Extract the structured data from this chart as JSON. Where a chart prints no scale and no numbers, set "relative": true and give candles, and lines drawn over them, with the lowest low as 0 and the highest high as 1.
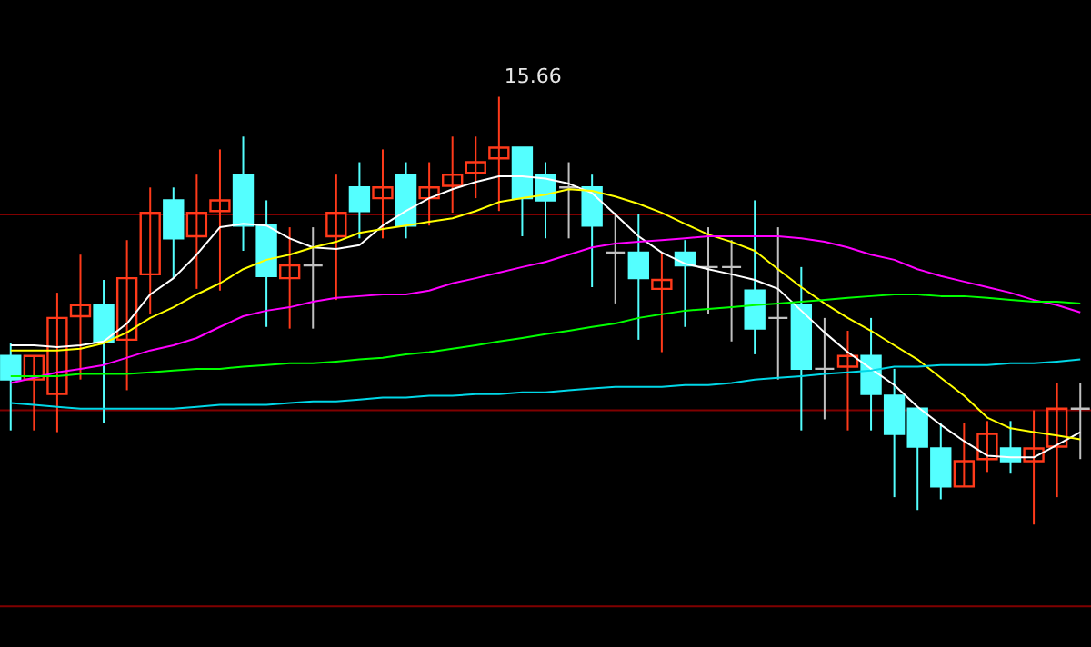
{
  "chart_data": {
    "type": "candlestick",
    "relative": true,
    "categories": [
      null,
      null,
      null,
      null,
      null,
      null,
      null,
      null,
      null,
      null,
      null,
      null,
      null,
      null,
      null,
      null,
      null,
      null,
      null,
      null,
      null,
      null,
      null,
      null,
      null,
      null,
      null,
      null,
      null,
      null,
      null,
      null,
      null,
      null,
      null,
      null,
      null,
      null,
      null,
      null,
      null,
      null,
      null,
      null,
      null,
      null,
      null
    ],
    "ohlc": [
      [
        0.394,
        0.424,
        0.22,
        0.339
      ],
      [
        0.339,
        0.394,
        0.22,
        0.394
      ],
      [
        0.305,
        0.542,
        0.216,
        0.483
      ],
      [
        0.487,
        0.631,
        0.339,
        0.513
      ],
      [
        0.513,
        0.572,
        0.237,
        0.428
      ],
      [
        0.432,
        0.665,
        0.314,
        0.576
      ],
      [
        0.585,
        0.788,
        0.492,
        0.729
      ],
      [
        0.758,
        0.788,
        0.576,
        0.669
      ],
      [
        0.674,
        0.818,
        0.551,
        0.729
      ],
      [
        0.733,
        0.877,
        0.547,
        0.758
      ],
      [
        0.818,
        0.907,
        0.64,
        0.699
      ],
      [
        0.699,
        0.758,
        0.462,
        0.581
      ],
      [
        0.576,
        0.695,
        0.458,
        0.606
      ],
      [
        0.606,
        0.695,
        0.458,
        0.606
      ],
      [
        0.674,
        0.818,
        0.525,
        0.729
      ],
      [
        0.788,
        0.847,
        0.669,
        0.733
      ],
      [
        0.763,
        0.877,
        0.669,
        0.788
      ],
      [
        0.818,
        0.847,
        0.669,
        0.699
      ],
      [
        0.763,
        0.847,
        0.699,
        0.788
      ],
      [
        0.792,
        0.907,
        0.729,
        0.818
      ],
      [
        0.822,
        0.907,
        0.763,
        0.847
      ],
      [
        0.856,
        1,
        0.733,
        0.881
      ],
      [
        0.881,
        0.881,
        0.674,
        0.763
      ],
      [
        0.818,
        0.847,
        0.669,
        0.758
      ],
      [
        0.788,
        0.847,
        0.669,
        0.788
      ],
      [
        0.788,
        0.818,
        0.555,
        0.699
      ],
      [
        0.636,
        0.729,
        0.517,
        0.636
      ],
      [
        0.636,
        0.725,
        0.432,
        0.576
      ],
      [
        0.551,
        0.636,
        0.403,
        0.572
      ],
      [
        0.636,
        0.665,
        0.462,
        0.606
      ],
      [
        0.602,
        0.695,
        0.492,
        0.602
      ],
      [
        0.602,
        0.665,
        0.428,
        0.602
      ],
      [
        0.547,
        0.758,
        0.398,
        0.458
      ],
      [
        0.483,
        0.695,
        0.339,
        0.483
      ],
      [
        0.513,
        0.602,
        0.22,
        0.364
      ],
      [
        0.364,
        0.483,
        0.246,
        0.364
      ],
      [
        0.369,
        0.453,
        0.22,
        0.394
      ],
      [
        0.394,
        0.483,
        0.22,
        0.305
      ],
      [
        0.301,
        0.364,
        0.064,
        0.212
      ],
      [
        0.271,
        0.271,
        0.034,
        0.182
      ],
      [
        0.178,
        0.237,
        0.059,
        0.089
      ],
      [
        0.089,
        0.237,
        0.089,
        0.148
      ],
      [
        0.153,
        0.242,
        0.123,
        0.212
      ],
      [
        0.178,
        0.242,
        0.119,
        0.148
      ],
      [
        0.148,
        0.267,
        0,
        0.178
      ],
      [
        0.182,
        0.331,
        0.064,
        0.271
      ],
      [
        0.271,
        0.331,
        0.153,
        0.271
      ]
    ],
    "colors": [
      "#54ffff",
      "#ff3a1a",
      "#ff3a1a",
      "#ff3a1a",
      "#54ffff",
      "#ff3a1a",
      "#ff3a1a",
      "#54ffff",
      "#ff3a1a",
      "#ff3a1a",
      "#54ffff",
      "#54ffff",
      "#ff3a1a",
      "#c0c0c0",
      "#ff3a1a",
      "#54ffff",
      "#ff3a1a",
      "#54ffff",
      "#ff3a1a",
      "#ff3a1a",
      "#ff3a1a",
      "#ff3a1a",
      "#54ffff",
      "#54ffff",
      "#c0c0c0",
      "#54ffff",
      "#c0c0c0",
      "#54ffff",
      "#ff3a1a",
      "#54ffff",
      "#c0c0c0",
      "#c0c0c0",
      "#54ffff",
      "#c0c0c0",
      "#54ffff",
      "#c0c0c0",
      "#ff3a1a",
      "#54ffff",
      "#54ffff",
      "#54ffff",
      "#54ffff",
      "#ff3a1a",
      "#ff3a1a",
      "#54ffff",
      "#ff3a1a",
      "#ff3a1a",
      "#c0c0c0"
    ],
    "series": [
      {
        "type": "line",
        "color": "#ffffff",
        "values": [
          0.419,
          0.419,
          0.415,
          0.419,
          0.428,
          0.47,
          0.538,
          0.576,
          0.631,
          0.695,
          0.703,
          0.699,
          0.669,
          0.648,
          0.644,
          0.653,
          0.699,
          0.733,
          0.763,
          0.784,
          0.801,
          0.814,
          0.814,
          0.809,
          0.797,
          0.775,
          0.725,
          0.674,
          0.636,
          0.61,
          0.597,
          0.585,
          0.572,
          0.551,
          0.5,
          0.449,
          0.403,
          0.364,
          0.326,
          0.275,
          0.233,
          0.195,
          0.161,
          0.157,
          0.157,
          0.186,
          0.216
        ]
      },
      {
        "type": "line",
        "color": "#ffff00",
        "values": [
          0.407,
          0.407,
          0.407,
          0.411,
          0.424,
          0.449,
          0.483,
          0.508,
          0.538,
          0.564,
          0.597,
          0.619,
          0.631,
          0.648,
          0.661,
          0.682,
          0.691,
          0.699,
          0.708,
          0.716,
          0.733,
          0.754,
          0.763,
          0.771,
          0.784,
          0.78,
          0.767,
          0.75,
          0.729,
          0.703,
          0.678,
          0.661,
          0.64,
          0.597,
          0.555,
          0.517,
          0.483,
          0.453,
          0.419,
          0.386,
          0.343,
          0.301,
          0.25,
          0.225,
          0.216,
          0.208,
          0.199
        ]
      },
      {
        "type": "line",
        "color": "#ff00ff",
        "values": [
          0.331,
          0.343,
          0.356,
          0.364,
          0.373,
          0.39,
          0.407,
          0.419,
          0.436,
          0.462,
          0.487,
          0.5,
          0.508,
          0.521,
          0.53,
          0.534,
          0.538,
          0.538,
          0.547,
          0.564,
          0.576,
          0.589,
          0.602,
          0.614,
          0.631,
          0.648,
          0.657,
          0.661,
          0.665,
          0.669,
          0.674,
          0.674,
          0.674,
          0.674,
          0.669,
          0.661,
          0.648,
          0.631,
          0.619,
          0.597,
          0.581,
          0.568,
          0.555,
          0.542,
          0.525,
          0.513,
          0.496
        ]
      },
      {
        "type": "line",
        "color": "#00ff00",
        "values": [
          0.347,
          0.347,
          0.347,
          0.352,
          0.352,
          0.352,
          0.356,
          0.36,
          0.364,
          0.364,
          0.369,
          0.373,
          0.377,
          0.377,
          0.381,
          0.386,
          0.39,
          0.398,
          0.403,
          0.411,
          0.419,
          0.428,
          0.436,
          0.445,
          0.453,
          0.462,
          0.47,
          0.483,
          0.492,
          0.5,
          0.504,
          0.508,
          0.513,
          0.517,
          0.521,
          0.525,
          0.53,
          0.534,
          0.538,
          0.538,
          0.534,
          0.534,
          0.53,
          0.525,
          0.521,
          0.521,
          0.517
        ]
      },
      {
        "type": "line",
        "color": "#00d8e8",
        "values": [
          0.284,
          0.28,
          0.275,
          0.271,
          0.271,
          0.271,
          0.271,
          0.271,
          0.275,
          0.28,
          0.28,
          0.28,
          0.284,
          0.288,
          0.288,
          0.292,
          0.297,
          0.297,
          0.301,
          0.301,
          0.305,
          0.305,
          0.309,
          0.309,
          0.314,
          0.318,
          0.322,
          0.322,
          0.322,
          0.326,
          0.326,
          0.331,
          0.339,
          0.343,
          0.347,
          0.352,
          0.356,
          0.36,
          0.369,
          0.369,
          0.373,
          0.373,
          0.373,
          0.377,
          0.377,
          0.381,
          0.386
        ]
      }
    ],
    "ref_lines": [
      {
        "axis": "y",
        "value": 0.725,
        "color": "#800000"
      },
      {
        "axis": "y",
        "value": 0.267,
        "color": "#800000"
      },
      {
        "axis": "y",
        "value": -0.191,
        "color": "#800000"
      }
    ],
    "annotations": [
      "15.66"
    ]
  }
}
